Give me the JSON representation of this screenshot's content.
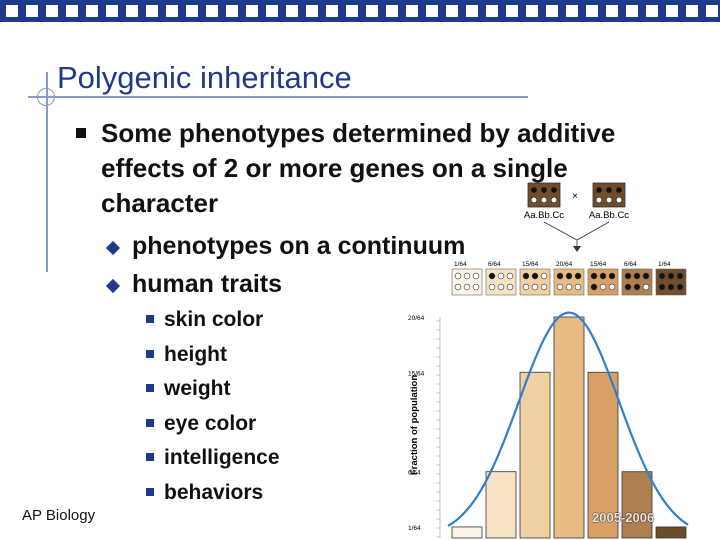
{
  "slide": {
    "title": "Polygenic inheritance",
    "bullet": "Some phenotypes determined by additive effects of 2 or more genes on a single character",
    "subbullets": [
      "phenotypes on a continuum",
      "human traits"
    ],
    "traits": [
      "skin color",
      "height",
      "weight",
      "eye color",
      "intelligence",
      "behaviors"
    ],
    "footer": "AP Biology",
    "year": "2005-2006"
  },
  "figure": {
    "parent_left": "Aa.Bb.Cc",
    "parent_right": "Aa.Bb.Cc",
    "cross_symbol": "×",
    "fraction_labels": [
      "1/64",
      "6/64",
      "15/64",
      "20/64",
      "15/64",
      "6/64",
      "1/64"
    ],
    "ylabel": "Fraction of population",
    "y_ticks": [
      "20/64",
      "15/64",
      "6/64",
      "1/64"
    ],
    "colors": {
      "bar_fills": [
        "#fbf3e6",
        "#f7e3c4",
        "#f0d0a2",
        "#e8bb83",
        "#d9a066",
        "#b07f50",
        "#6f4c2a"
      ],
      "curve": "#2f7fd0",
      "title": "#1f3a8a"
    }
  }
}
